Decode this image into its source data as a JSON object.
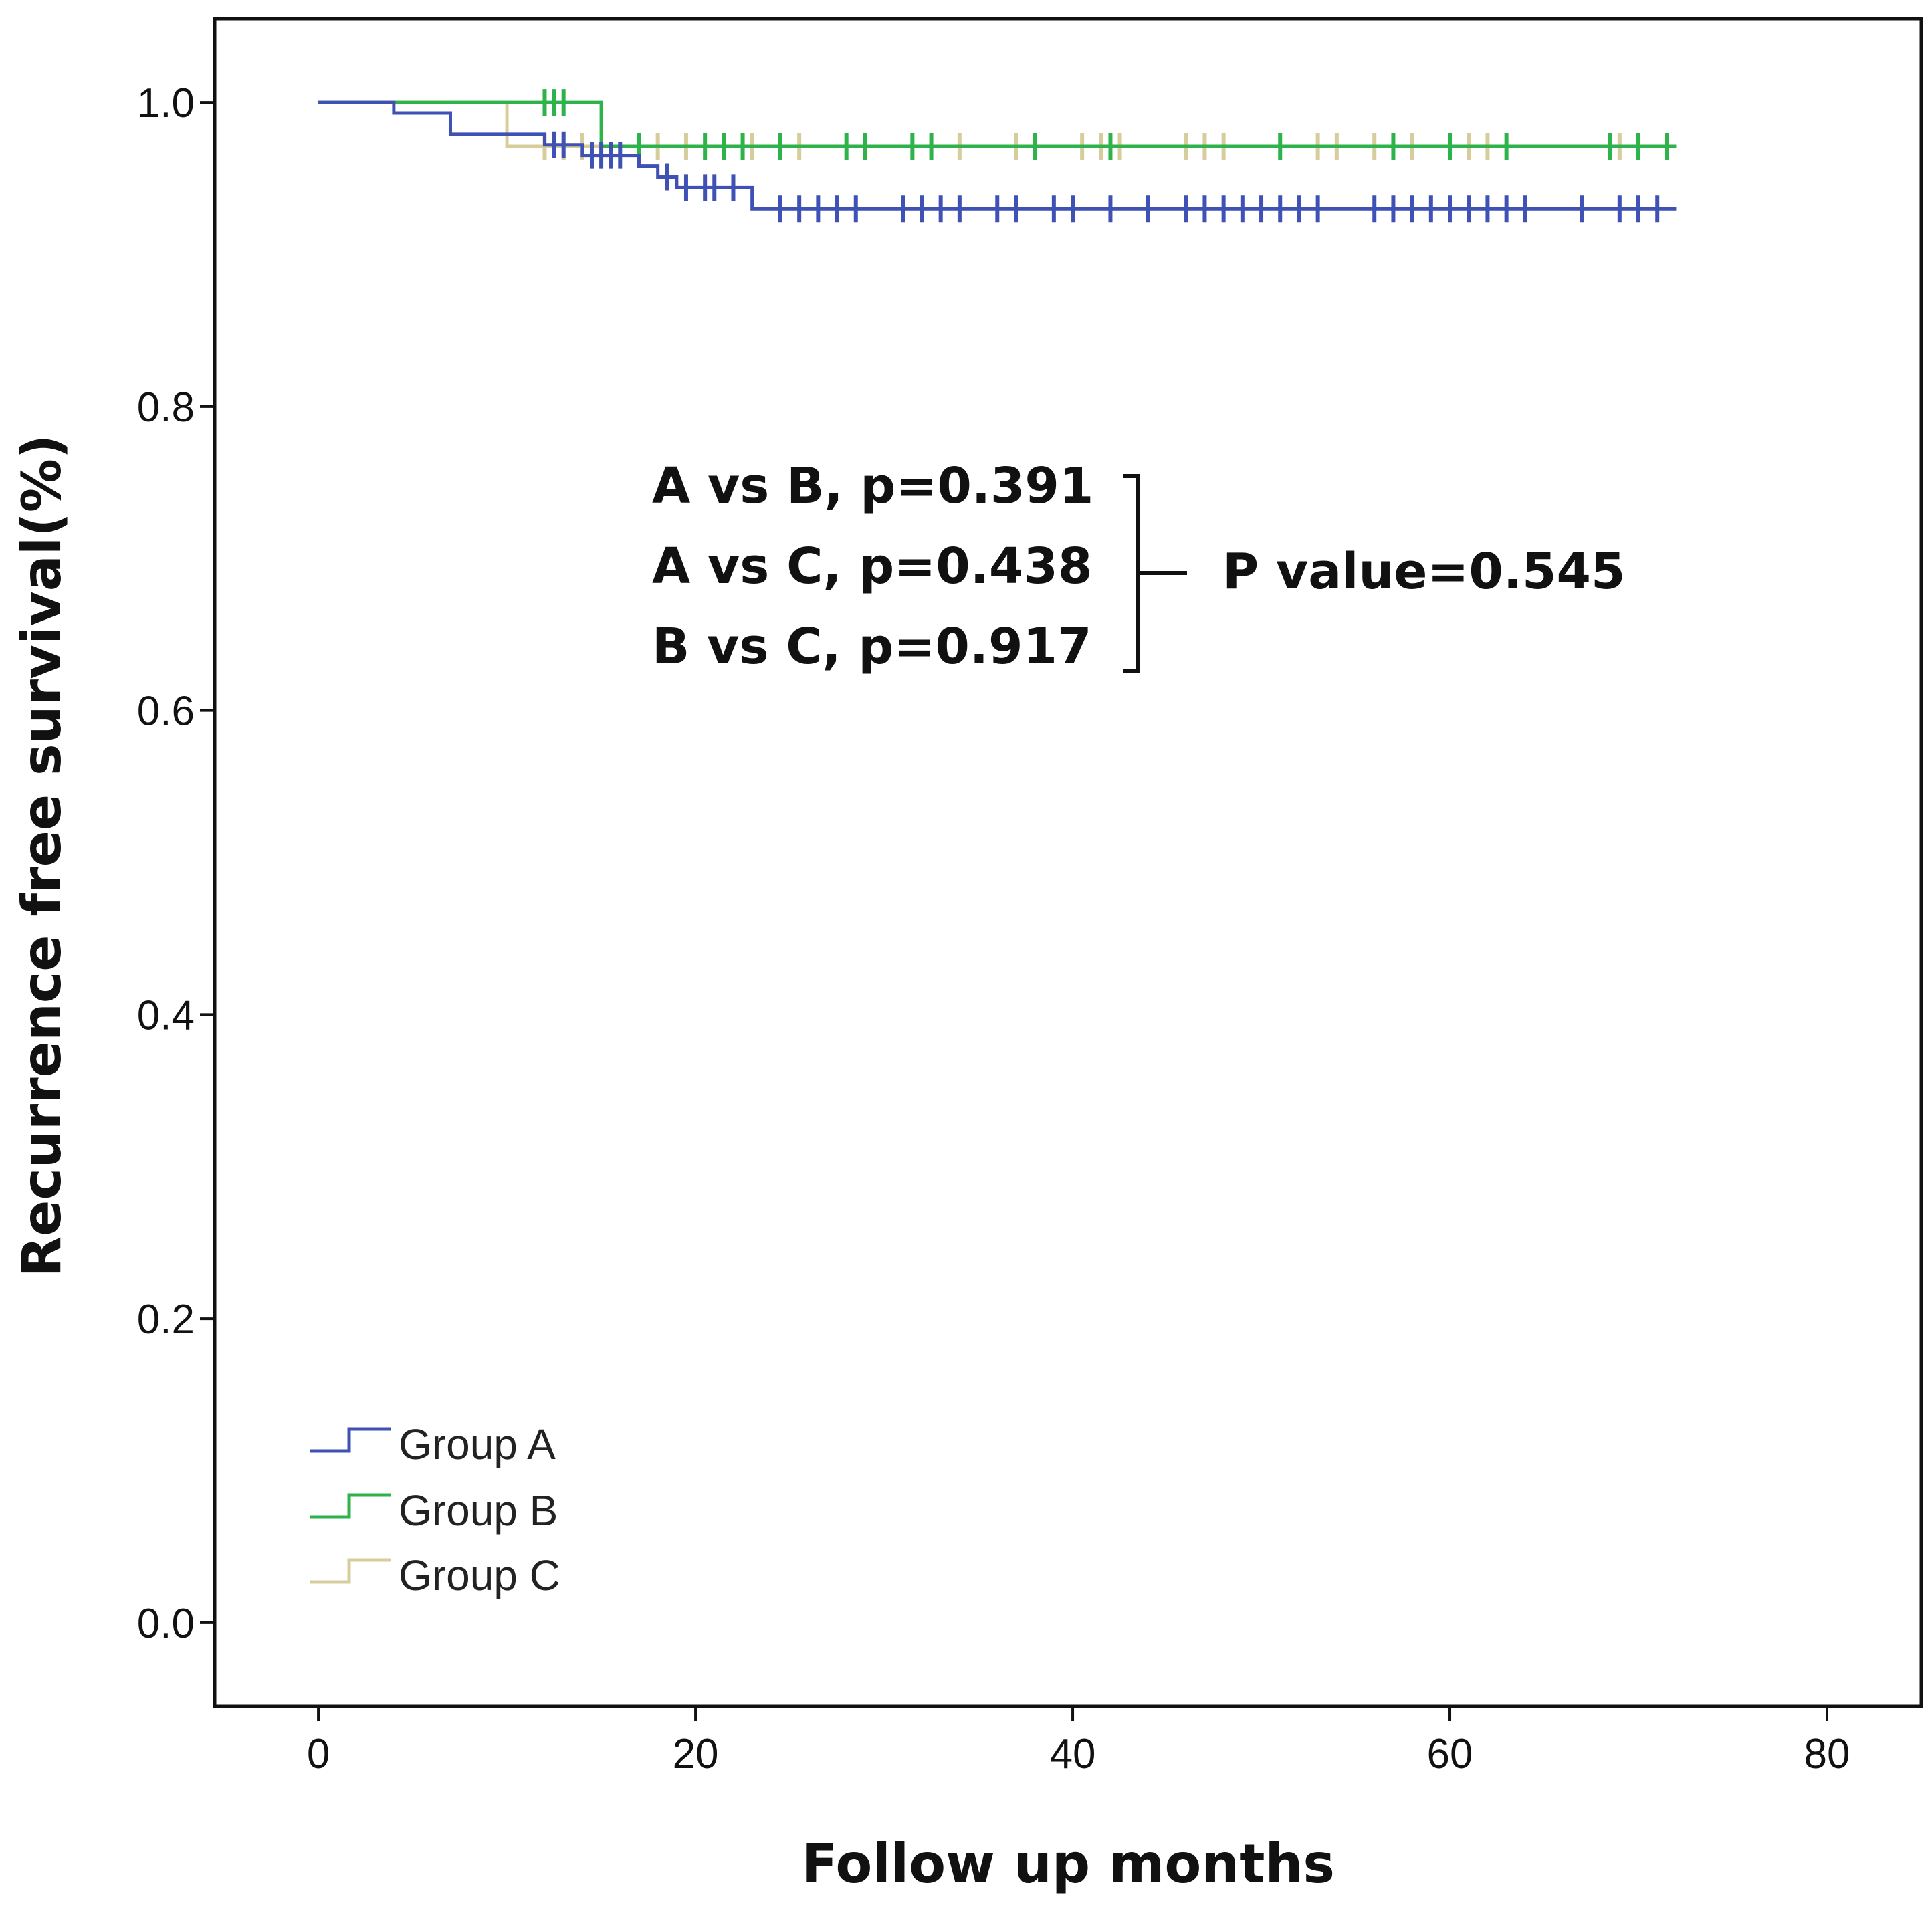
{
  "chart_data": {
    "type": "line",
    "subtype": "kaplan-meier",
    "title": "",
    "xlabel": "Follow up months",
    "ylabel": "Recurrence free survival(%)",
    "xlim": [
      -5.5,
      85
    ],
    "ylim": [
      -0.055,
      1.055
    ],
    "xticks": [
      0,
      20,
      40,
      60,
      80
    ],
    "xtick_labels": [
      "0",
      "20",
      "40",
      "60",
      "80"
    ],
    "yticks": [
      0.0,
      0.2,
      0.4,
      0.6,
      0.8,
      1.0
    ],
    "ytick_labels": [
      "0.0",
      "0.2",
      "0.4",
      "0.6",
      "0.8",
      "1.0"
    ],
    "grid": false,
    "legend_position": "bottom-left",
    "series": [
      {
        "name": "Group A",
        "color": "#3f51b5",
        "steps": [
          [
            0,
            1.0
          ],
          [
            4,
            0.993
          ],
          [
            7,
            0.979
          ],
          [
            12,
            0.972
          ],
          [
            14,
            0.965
          ],
          [
            17,
            0.958
          ],
          [
            18,
            0.951
          ],
          [
            19,
            0.944
          ],
          [
            23,
            0.93
          ],
          [
            72,
            0.93
          ]
        ],
        "censored": [
          [
            12.5,
            0.972
          ],
          [
            13,
            0.972
          ],
          [
            14.5,
            0.965
          ],
          [
            15,
            0.965
          ],
          [
            15.5,
            0.965
          ],
          [
            16,
            0.965
          ],
          [
            18.5,
            0.951
          ],
          [
            19.5,
            0.944
          ],
          [
            20.5,
            0.944
          ],
          [
            21,
            0.944
          ],
          [
            22,
            0.944
          ],
          [
            24.5,
            0.93
          ],
          [
            25.5,
            0.93
          ],
          [
            26.5,
            0.93
          ],
          [
            27.5,
            0.93
          ],
          [
            28.5,
            0.93
          ],
          [
            31,
            0.93
          ],
          [
            32,
            0.93
          ],
          [
            33,
            0.93
          ],
          [
            34,
            0.93
          ],
          [
            36,
            0.93
          ],
          [
            37,
            0.93
          ],
          [
            39,
            0.93
          ],
          [
            40,
            0.93
          ],
          [
            42,
            0.93
          ],
          [
            44,
            0.93
          ],
          [
            46,
            0.93
          ],
          [
            47,
            0.93
          ],
          [
            48,
            0.93
          ],
          [
            49,
            0.93
          ],
          [
            50,
            0.93
          ],
          [
            51,
            0.93
          ],
          [
            52,
            0.93
          ],
          [
            53,
            0.93
          ],
          [
            56,
            0.93
          ],
          [
            57,
            0.93
          ],
          [
            58,
            0.93
          ],
          [
            59,
            0.93
          ],
          [
            60,
            0.93
          ],
          [
            61,
            0.93
          ],
          [
            62,
            0.93
          ],
          [
            63,
            0.93
          ],
          [
            64,
            0.93
          ],
          [
            67,
            0.93
          ],
          [
            69,
            0.93
          ],
          [
            70,
            0.93
          ],
          [
            71,
            0.93
          ]
        ]
      },
      {
        "name": "Group B",
        "color": "#2db34a",
        "steps": [
          [
            0,
            1.0
          ],
          [
            15,
            0.971
          ],
          [
            72,
            0.971
          ]
        ],
        "censored": [
          [
            12,
            1.0
          ],
          [
            12.5,
            1.0
          ],
          [
            13,
            1.0
          ],
          [
            17,
            0.971
          ],
          [
            20.5,
            0.971
          ],
          [
            21.5,
            0.971
          ],
          [
            22.5,
            0.971
          ],
          [
            24.5,
            0.971
          ],
          [
            28,
            0.971
          ],
          [
            29,
            0.971
          ],
          [
            31.5,
            0.971
          ],
          [
            32.5,
            0.971
          ],
          [
            38,
            0.971
          ],
          [
            42,
            0.971
          ],
          [
            51,
            0.971
          ],
          [
            57,
            0.971
          ],
          [
            60,
            0.971
          ],
          [
            63,
            0.971
          ],
          [
            68.5,
            0.971
          ],
          [
            70,
            0.971
          ],
          [
            71.5,
            0.971
          ]
        ]
      },
      {
        "name": "Group C",
        "color": "#d7cc9c",
        "steps": [
          [
            0,
            1.0
          ],
          [
            10,
            0.971
          ],
          [
            72,
            0.971
          ]
        ],
        "censored": [
          [
            12,
            0.971
          ],
          [
            13,
            0.971
          ],
          [
            14,
            0.971
          ],
          [
            18,
            0.971
          ],
          [
            19.5,
            0.971
          ],
          [
            23,
            0.971
          ],
          [
            25.5,
            0.971
          ],
          [
            34,
            0.971
          ],
          [
            37,
            0.971
          ],
          [
            40.5,
            0.971
          ],
          [
            41.5,
            0.971
          ],
          [
            42.5,
            0.971
          ],
          [
            46,
            0.971
          ],
          [
            47,
            0.971
          ],
          [
            48,
            0.971
          ],
          [
            53,
            0.971
          ],
          [
            54,
            0.971
          ],
          [
            56,
            0.971
          ],
          [
            58,
            0.971
          ],
          [
            61,
            0.971
          ],
          [
            62,
            0.971
          ],
          [
            69,
            0.971
          ]
        ]
      }
    ],
    "annotations": {
      "comparisons": [
        "A vs B, p=0.391",
        "A vs C, p=0.438",
        "B vs C, p=0.917"
      ],
      "overall": "P value=0.545"
    }
  }
}
